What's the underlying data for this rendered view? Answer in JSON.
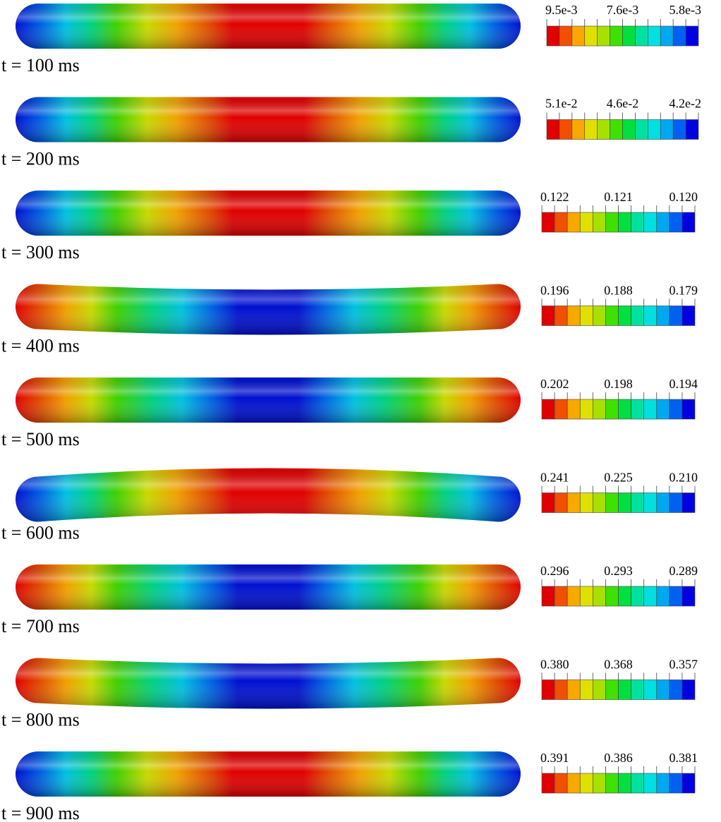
{
  "panels": [
    {
      "time": "t = 100 ms",
      "scale": [
        "9.5e-3",
        "7.6e-3",
        "5.8e-3"
      ]
    },
    {
      "time": "t = 200 ms",
      "scale": [
        "5.1e-2",
        "4.6e-2",
        "4.2e-2"
      ]
    },
    {
      "time": "t = 300 ms",
      "scale": [
        "0.122",
        "0.121",
        "0.120"
      ]
    },
    {
      "time": "t = 400 ms",
      "scale": [
        "0.196",
        "0.188",
        "0.179"
      ]
    },
    {
      "time": "t = 500 ms",
      "scale": [
        "0.202",
        "0.198",
        "0.194"
      ]
    },
    {
      "time": "t = 600 ms",
      "scale": [
        "0.241",
        "0.225",
        "0.210"
      ]
    },
    {
      "time": "t = 700 ms",
      "scale": [
        "0.296",
        "0.293",
        "0.289"
      ]
    },
    {
      "time": "t = 800 ms",
      "scale": [
        "0.380",
        "0.368",
        "0.357"
      ]
    },
    {
      "time": "t = 900 ms",
      "scale": [
        "0.391",
        "0.386",
        "0.381"
      ]
    }
  ]
}
